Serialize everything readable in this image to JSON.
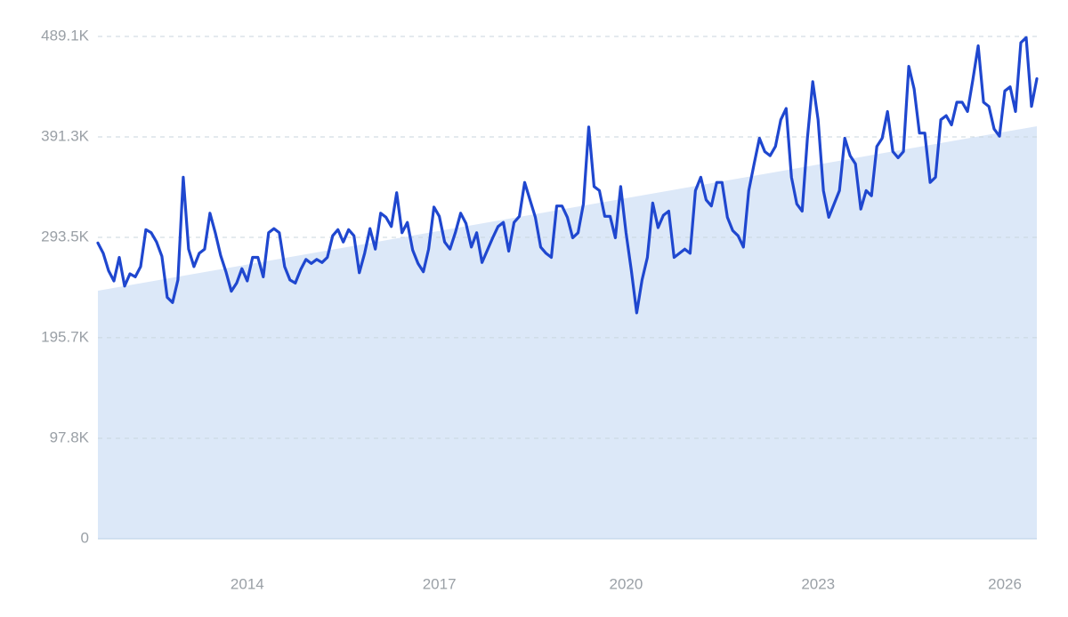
{
  "chart_data": {
    "type": "line",
    "color": "#1f47cf",
    "trend": {
      "values": [
        241500,
        401700
      ],
      "color": "#dce8f8"
    },
    "ylim": [
      0,
      489100
    ],
    "yticks": [
      0,
      {
        "value": 97800,
        "label": "97.8K"
      },
      {
        "value": 195700,
        "label": "195.7K"
      },
      {
        "value": 293500,
        "label": "293.5K"
      },
      {
        "value": 391300,
        "label": "391.3K"
      },
      {
        "value": 489100,
        "label": "489.1K"
      }
    ],
    "grid": true,
    "categories": [
      null,
      null,
      null,
      null,
      null,
      null,
      null,
      null,
      null,
      null,
      null,
      null,
      null,
      null,
      null,
      null,
      null,
      null,
      null,
      null,
      null,
      null,
      null,
      null,
      null,
      null,
      null,
      null,
      "2014",
      null,
      null,
      null,
      null,
      null,
      null,
      null,
      null,
      null,
      null,
      null,
      null,
      null,
      null,
      null,
      null,
      null,
      null,
      null,
      null,
      null,
      null,
      null,
      null,
      null,
      null,
      null,
      null,
      null,
      null,
      null,
      null,
      null,
      null,
      null,
      "2017",
      null,
      null,
      null,
      null,
      null,
      null,
      null,
      null,
      null,
      null,
      null,
      null,
      null,
      null,
      null,
      null,
      null,
      null,
      null,
      null,
      null,
      null,
      null,
      null,
      null,
      null,
      null,
      null,
      null,
      null,
      null,
      null,
      null,
      null,
      "2020",
      null,
      null,
      null,
      null,
      null,
      null,
      null,
      null,
      null,
      null,
      null,
      null,
      null,
      null,
      null,
      null,
      null,
      null,
      null,
      null,
      null,
      null,
      null,
      null,
      null,
      null,
      null,
      null,
      null,
      null,
      null,
      null,
      null,
      null,
      null,
      "2023",
      null,
      null,
      null,
      null,
      null,
      null,
      null,
      null,
      null,
      null,
      null,
      null,
      null,
      null,
      null,
      null,
      null,
      null,
      null,
      null,
      null,
      null,
      null,
      null,
      null,
      null,
      null,
      null,
      null,
      null,
      null,
      null,
      null,
      null,
      "2026",
      null,
      null,
      null,
      null,
      null,
      null
    ],
    "values": [
      288000,
      278000,
      261000,
      251000,
      274000,
      246000,
      258000,
      255000,
      265000,
      301000,
      298000,
      289000,
      275000,
      235000,
      230000,
      252000,
      352000,
      282000,
      265000,
      278000,
      282000,
      317000,
      298000,
      276000,
      260000,
      241000,
      249000,
      263000,
      251000,
      274000,
      274000,
      255000,
      298000,
      302000,
      298000,
      265000,
      252000,
      249000,
      262000,
      272000,
      268000,
      272000,
      269000,
      274000,
      295000,
      301000,
      289000,
      301000,
      295000,
      259000,
      278000,
      302000,
      282000,
      317000,
      313000,
      304000,
      337000,
      298000,
      308000,
      281000,
      268000,
      260000,
      282000,
      323000,
      314000,
      289000,
      282000,
      298000,
      317000,
      307000,
      284000,
      298000,
      269000,
      281000,
      293000,
      304000,
      308000,
      280000,
      308000,
      314000,
      347000,
      330000,
      313000,
      284000,
      278000,
      274000,
      324000,
      324000,
      313000,
      293000,
      298000,
      326000,
      401000,
      343000,
      339000,
      314000,
      314000,
      293000,
      343000,
      298000,
      261000,
      220000,
      252000,
      274000,
      327000,
      303000,
      315000,
      319000,
      274000,
      278000,
      282000,
      278000,
      339000,
      352000,
      330000,
      324000,
      347000,
      347000,
      313000,
      300000,
      295000,
      284000,
      339000,
      365000,
      390000,
      377000,
      373000,
      382000,
      408000,
      419000,
      352000,
      326000,
      319000,
      390000,
      445000,
      408000,
      339000,
      313000,
      326000,
      339000,
      390000,
      373000,
      365000,
      321000,
      339000,
      334000,
      382000,
      390000,
      416000,
      377000,
      371000,
      377000,
      460000,
      438000,
      395000,
      395000,
      347000,
      352000,
      408000,
      412000,
      403000,
      425000,
      425000,
      416000,
      447000,
      480000,
      425000,
      421000,
      399000,
      392000,
      436000,
      440000,
      416000,
      483000,
      488000,
      421000,
      448000
    ]
  }
}
